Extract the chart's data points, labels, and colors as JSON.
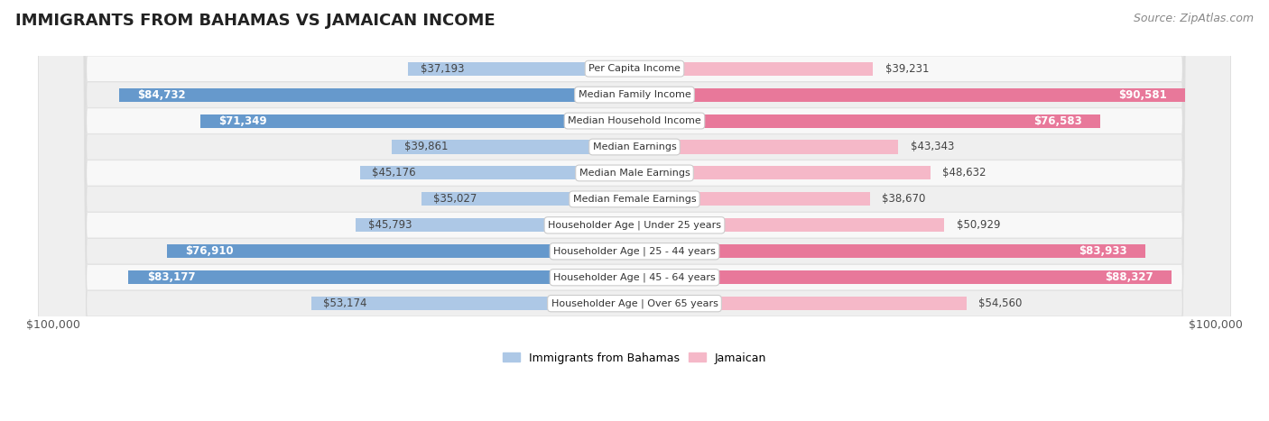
{
  "title": "IMMIGRANTS FROM BAHAMAS VS JAMAICAN INCOME",
  "source": "Source: ZipAtlas.com",
  "categories": [
    "Per Capita Income",
    "Median Family Income",
    "Median Household Income",
    "Median Earnings",
    "Median Male Earnings",
    "Median Female Earnings",
    "Householder Age | Under 25 years",
    "Householder Age | 25 - 44 years",
    "Householder Age | 45 - 64 years",
    "Householder Age | Over 65 years"
  ],
  "bahamas_values": [
    37193,
    84732,
    71349,
    39861,
    45176,
    35027,
    45793,
    76910,
    83177,
    53174
  ],
  "jamaican_values": [
    39231,
    90581,
    76583,
    43343,
    48632,
    38670,
    50929,
    83933,
    88327,
    54560
  ],
  "bahamas_color_light": "#adc8e6",
  "bahamas_color_dark": "#6699cc",
  "jamaican_color_light": "#f5b8c8",
  "jamaican_color_dark": "#e8789a",
  "threshold_dark": 60000,
  "max_value": 100000,
  "background_color": "#ffffff",
  "row_bg_even": "#f8f8f8",
  "row_bg_odd": "#efefef",
  "legend_bahamas": "Immigrants from Bahamas",
  "legend_jamaican": "Jamaican",
  "xlabel_left": "$100,000",
  "xlabel_right": "$100,000",
  "bar_height": 0.52,
  "label_fontsize": 8.5,
  "title_fontsize": 13,
  "source_fontsize": 9
}
